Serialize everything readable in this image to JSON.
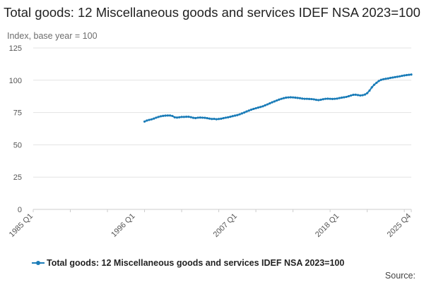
{
  "chart_data": {
    "type": "line",
    "title": "Total goods: 12 Miscellaneous goods and services IDEF NSA 2023=100",
    "ylabel": "Index, base year = 100",
    "xlabel": "",
    "ylim": [
      0,
      125
    ],
    "yticks": [
      0,
      25,
      50,
      75,
      100,
      125
    ],
    "x_tick_labels": [
      "1985 Q1",
      "1996 Q1",
      "2007 Q1",
      "2018 Q1",
      "2025 Q4"
    ],
    "x_range": [
      "1985 Q1",
      "2025 Q4"
    ],
    "grid": "horizontal",
    "legend_position": "bottom",
    "source_label": "Source:",
    "series": [
      {
        "name": "Total goods: 12 Miscellaneous goods and services IDEF NSA 2023=100",
        "color": "#1a7cb8",
        "points": [
          [
            "1997 Q1",
            68.0
          ],
          [
            "1997 Q2",
            68.8
          ],
          [
            "1997 Q3",
            69.3
          ],
          [
            "1997 Q4",
            69.7
          ],
          [
            "1998 Q1",
            70.3
          ],
          [
            "1998 Q2",
            71.0
          ],
          [
            "1998 Q3",
            71.6
          ],
          [
            "1998 Q4",
            72.1
          ],
          [
            "1999 Q1",
            72.4
          ],
          [
            "1999 Q2",
            72.6
          ],
          [
            "1999 Q3",
            72.7
          ],
          [
            "1999 Q4",
            72.7
          ],
          [
            "2000 Q1",
            72.3
          ],
          [
            "2000 Q2",
            71.3
          ],
          [
            "2000 Q3",
            71.1
          ],
          [
            "2000 Q4",
            71.3
          ],
          [
            "2001 Q1",
            71.6
          ],
          [
            "2001 Q2",
            71.6
          ],
          [
            "2001 Q3",
            71.7
          ],
          [
            "2001 Q4",
            71.7
          ],
          [
            "2002 Q1",
            71.4
          ],
          [
            "2002 Q2",
            70.9
          ],
          [
            "2002 Q3",
            70.7
          ],
          [
            "2002 Q4",
            71.0
          ],
          [
            "2003 Q1",
            71.1
          ],
          [
            "2003 Q2",
            71.0
          ],
          [
            "2003 Q3",
            70.9
          ],
          [
            "2003 Q4",
            70.6
          ],
          [
            "2004 Q1",
            70.3
          ],
          [
            "2004 Q2",
            70.0
          ],
          [
            "2004 Q3",
            70.1
          ],
          [
            "2004 Q4",
            69.8
          ],
          [
            "2005 Q1",
            70.0
          ],
          [
            "2005 Q2",
            70.2
          ],
          [
            "2005 Q3",
            70.6
          ],
          [
            "2005 Q4",
            71.0
          ],
          [
            "2006 Q1",
            71.3
          ],
          [
            "2006 Q2",
            71.7
          ],
          [
            "2006 Q3",
            72.2
          ],
          [
            "2006 Q4",
            72.6
          ],
          [
            "2007 Q1",
            73.0
          ],
          [
            "2007 Q2",
            73.6
          ],
          [
            "2007 Q3",
            74.3
          ],
          [
            "2007 Q4",
            75.0
          ],
          [
            "2008 Q1",
            75.8
          ],
          [
            "2008 Q2",
            76.5
          ],
          [
            "2008 Q3",
            77.2
          ],
          [
            "2008 Q4",
            77.8
          ],
          [
            "2009 Q1",
            78.3
          ],
          [
            "2009 Q2",
            78.8
          ],
          [
            "2009 Q3",
            79.3
          ],
          [
            "2009 Q4",
            79.8
          ],
          [
            "2010 Q1",
            80.6
          ],
          [
            "2010 Q2",
            81.3
          ],
          [
            "2010 Q3",
            82.1
          ],
          [
            "2010 Q4",
            82.9
          ],
          [
            "2011 Q1",
            83.6
          ],
          [
            "2011 Q2",
            84.3
          ],
          [
            "2011 Q3",
            85.0
          ],
          [
            "2011 Q4",
            85.6
          ],
          [
            "2012 Q1",
            86.1
          ],
          [
            "2012 Q2",
            86.5
          ],
          [
            "2012 Q3",
            86.7
          ],
          [
            "2012 Q4",
            86.8
          ],
          [
            "2013 Q1",
            86.7
          ],
          [
            "2013 Q2",
            86.5
          ],
          [
            "2013 Q3",
            86.3
          ],
          [
            "2013 Q4",
            86.1
          ],
          [
            "2014 Q1",
            85.8
          ],
          [
            "2014 Q2",
            85.6
          ],
          [
            "2014 Q3",
            85.6
          ],
          [
            "2014 Q4",
            85.5
          ],
          [
            "2015 Q1",
            85.4
          ],
          [
            "2015 Q2",
            85.2
          ],
          [
            "2015 Q3",
            84.8
          ],
          [
            "2015 Q4",
            84.6
          ],
          [
            "2016 Q1",
            84.9
          ],
          [
            "2016 Q2",
            85.3
          ],
          [
            "2016 Q3",
            85.6
          ],
          [
            "2016 Q4",
            85.7
          ],
          [
            "2017 Q1",
            85.6
          ],
          [
            "2017 Q2",
            85.5
          ],
          [
            "2017 Q3",
            85.6
          ],
          [
            "2017 Q4",
            85.8
          ],
          [
            "2018 Q1",
            86.2
          ],
          [
            "2018 Q2",
            86.5
          ],
          [
            "2018 Q3",
            86.8
          ],
          [
            "2018 Q4",
            87.1
          ],
          [
            "2019 Q1",
            87.6
          ],
          [
            "2019 Q2",
            88.2
          ],
          [
            "2019 Q3",
            88.7
          ],
          [
            "2019 Q4",
            88.8
          ],
          [
            "2020 Q1",
            88.5
          ],
          [
            "2020 Q2",
            88.2
          ],
          [
            "2020 Q3",
            88.4
          ],
          [
            "2020 Q4",
            88.9
          ],
          [
            "2021 Q1",
            90.0
          ],
          [
            "2021 Q2",
            92.0
          ],
          [
            "2021 Q3",
            94.5
          ],
          [
            "2021 Q4",
            96.5
          ],
          [
            "2022 Q1",
            98.0
          ],
          [
            "2022 Q2",
            99.4
          ],
          [
            "2022 Q3",
            100.3
          ],
          [
            "2022 Q4",
            100.8
          ],
          [
            "2023 Q1",
            101.1
          ],
          [
            "2023 Q2",
            101.4
          ],
          [
            "2023 Q3",
            101.8
          ],
          [
            "2023 Q4",
            102.1
          ],
          [
            "2024 Q1",
            102.4
          ],
          [
            "2024 Q2",
            102.7
          ],
          [
            "2024 Q3",
            103.0
          ],
          [
            "2024 Q4",
            103.4
          ],
          [
            "2025 Q1",
            103.7
          ],
          [
            "2025 Q2",
            104.0
          ],
          [
            "2025 Q3",
            104.2
          ],
          [
            "2025 Q4",
            104.4
          ]
        ]
      }
    ]
  }
}
